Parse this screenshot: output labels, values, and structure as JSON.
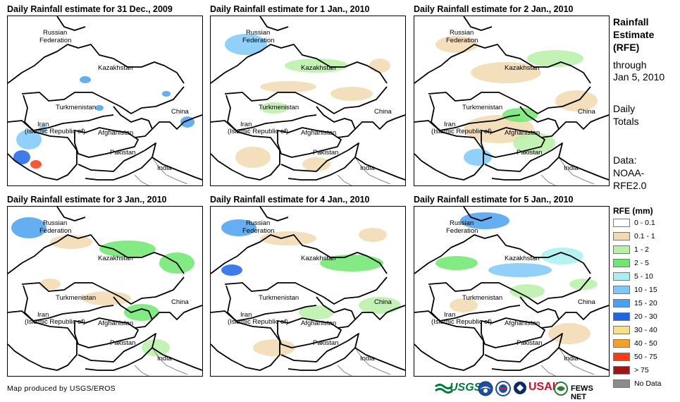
{
  "panels": [
    {
      "title": "Daily Rainfall estimate for 31 Dec., 2009"
    },
    {
      "title": "Daily Rainfall estimate for 1 Jan., 2010"
    },
    {
      "title": "Daily Rainfall estimate for 2 Jan., 2010"
    },
    {
      "title": "Daily Rainfall estimate for 3 Jan., 2010"
    },
    {
      "title": "Daily Rainfall estimate for 4 Jan., 2010"
    },
    {
      "title": "Daily Rainfall estimate for 5 Jan., 2010"
    }
  ],
  "map_labels": {
    "russia_line1": "Russian",
    "russia_line2": "Federation",
    "kazakhstan": "Kazakhstan",
    "turkmenistan": "Turkmenistan",
    "iran_line1": "Iran",
    "iran_line2": "(Islamic Republic of)",
    "afghanistan": "Afghanistan",
    "pakistan": "Pakistan",
    "china": "China",
    "india": "India"
  },
  "side_panel": {
    "title_line1": "Rainfall",
    "title_line2": "Estimate",
    "title_line3": "(RFE)",
    "through_line1": "through",
    "through_line2": "Jan 5, 2010",
    "daily_line1": "Daily",
    "daily_line2": "Totals",
    "data_line1": "Data:",
    "data_line2": "NOAA-",
    "data_line3": "RFE2.0"
  },
  "legend": {
    "title": "RFE (mm)",
    "items": [
      {
        "label": "0 - 0.1",
        "color": "#ffffff"
      },
      {
        "label": "0.1 - 1",
        "color": "#f2d9b0"
      },
      {
        "label": "1 - 2",
        "color": "#b8f0a8"
      },
      {
        "label": "2 - 5",
        "color": "#6ee86e"
      },
      {
        "label": "5 - 10",
        "color": "#a8f0f0"
      },
      {
        "label": "10 - 15",
        "color": "#7ec8f8"
      },
      {
        "label": "15 - 20",
        "color": "#4aa0f0"
      },
      {
        "label": "20 - 30",
        "color": "#1e64e6"
      },
      {
        "label": "30 - 40",
        "color": "#f8e088"
      },
      {
        "label": "40 - 50",
        "color": "#f8a020"
      },
      {
        "label": "50 - 75",
        "color": "#f83c14"
      },
      {
        "label": "> 75",
        "color": "#a01414"
      },
      {
        "label": "No Data",
        "color": "#8c8c8c"
      }
    ]
  },
  "footer": {
    "credit": "Map produced by USGS/EROS",
    "usgs": "USGS",
    "usaid": "USAID",
    "fewsnet": "FEWS NET"
  }
}
